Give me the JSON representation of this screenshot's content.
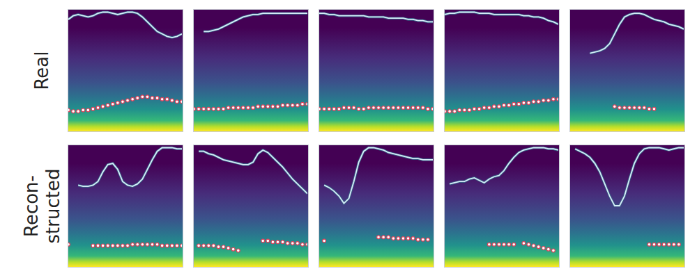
{
  "chart_data": [
    {
      "type": "line",
      "ylabel": "Real",
      "x": [
        0,
        1,
        2,
        3,
        4,
        5,
        6,
        7,
        8,
        9,
        10,
        11,
        12,
        13,
        14,
        15,
        16,
        17,
        18,
        19,
        20,
        21,
        22,
        23
      ],
      "xlim": [
        0,
        23
      ],
      "ylim": [
        0,
        1
      ],
      "tick_labels": false,
      "series": [
        {
          "type": "line",
          "color": "#d6ecf8",
          "values": [
            0.92,
            0.95,
            0.96,
            0.95,
            0.94,
            0.95,
            0.97,
            0.98,
            0.98,
            0.97,
            0.96,
            0.97,
            0.98,
            0.98,
            0.97,
            0.94,
            0.9,
            0.86,
            0.82,
            0.8,
            0.78,
            0.77,
            0.78,
            0.8
          ]
        },
        {
          "type": "scatter",
          "color": "#ffffff",
          "marker": "circle",
          "values": [
            0.17,
            0.16,
            0.16,
            0.17,
            0.17,
            0.18,
            0.19,
            0.2,
            0.21,
            0.22,
            0.23,
            0.24,
            0.25,
            0.26,
            0.27,
            0.28,
            0.28,
            0.27,
            0.27,
            0.26,
            0.26,
            0.25,
            0.24,
            0.24
          ]
        }
      ]
    },
    {
      "type": "line",
      "x": [
        0,
        1,
        2,
        3,
        4,
        5,
        6,
        7,
        8,
        9,
        10,
        11,
        12,
        13,
        14,
        15,
        16,
        17,
        18,
        19,
        20,
        21,
        22,
        23
      ],
      "xlim": [
        0,
        23
      ],
      "ylim": [
        0,
        1
      ],
      "tick_labels": false,
      "series": [
        {
          "type": "line",
          "color": "#d6ecf8",
          "values": [
            null,
            null,
            0.82,
            0.82,
            0.83,
            0.84,
            0.86,
            0.88,
            0.9,
            0.92,
            0.94,
            0.95,
            0.96,
            0.96,
            0.97,
            0.97,
            0.97,
            0.97,
            0.97,
            0.97,
            0.97,
            0.97,
            0.97,
            0.97
          ]
        },
        {
          "type": "scatter",
          "color": "#ffffff",
          "marker": "circle",
          "values": [
            0.18,
            0.18,
            0.18,
            0.18,
            0.18,
            0.18,
            0.18,
            0.19,
            0.19,
            0.19,
            0.19,
            0.19,
            0.19,
            0.2,
            0.2,
            0.2,
            0.2,
            0.2,
            0.21,
            0.21,
            0.21,
            0.21,
            0.22,
            0.22
          ]
        }
      ]
    },
    {
      "type": "line",
      "x": [
        0,
        1,
        2,
        3,
        4,
        5,
        6,
        7,
        8,
        9,
        10,
        11,
        12,
        13,
        14,
        15,
        16,
        17,
        18,
        19,
        20,
        21,
        22,
        23
      ],
      "xlim": [
        0,
        23
      ],
      "ylim": [
        0,
        1
      ],
      "tick_labels": false,
      "series": [
        {
          "type": "line",
          "color": "#d6ecf8",
          "values": [
            0.97,
            0.97,
            0.96,
            0.96,
            0.95,
            0.95,
            0.95,
            0.95,
            0.95,
            0.95,
            0.94,
            0.94,
            0.94,
            0.94,
            0.93,
            0.93,
            0.93,
            0.93,
            0.92,
            0.92,
            0.91,
            0.91,
            0.9,
            0.9
          ]
        },
        {
          "type": "scatter",
          "color": "#ffffff",
          "marker": "circle",
          "values": [
            0.18,
            0.18,
            0.18,
            0.18,
            0.18,
            0.19,
            0.19,
            0.19,
            0.18,
            0.18,
            0.19,
            0.19,
            0.19,
            0.19,
            0.19,
            0.19,
            0.19,
            0.19,
            0.19,
            0.19,
            0.19,
            0.19,
            0.18,
            0.18
          ]
        }
      ]
    },
    {
      "type": "line",
      "x": [
        0,
        1,
        2,
        3,
        4,
        5,
        6,
        7,
        8,
        9,
        10,
        11,
        12,
        13,
        14,
        15,
        16,
        17,
        18,
        19,
        20,
        21,
        22,
        23
      ],
      "xlim": [
        0,
        23
      ],
      "ylim": [
        0,
        1
      ],
      "tick_labels": false,
      "series": [
        {
          "type": "line",
          "color": "#d6ecf8",
          "values": [
            0.96,
            0.97,
            0.97,
            0.98,
            0.98,
            0.98,
            0.98,
            0.97,
            0.97,
            0.97,
            0.96,
            0.96,
            0.96,
            0.96,
            0.96,
            0.96,
            0.95,
            0.95,
            0.94,
            0.94,
            0.93,
            0.91,
            0.9,
            0.88
          ]
        },
        {
          "type": "scatter",
          "color": "#ffffff",
          "marker": "circle",
          "values": [
            0.16,
            0.16,
            0.16,
            0.17,
            0.17,
            0.17,
            0.18,
            0.18,
            0.19,
            0.19,
            0.2,
            0.2,
            0.21,
            0.21,
            0.22,
            0.22,
            0.23,
            0.23,
            0.24,
            0.24,
            0.25,
            0.25,
            0.26,
            0.26
          ]
        }
      ]
    },
    {
      "type": "line",
      "x": [
        0,
        1,
        2,
        3,
        4,
        5,
        6,
        7,
        8,
        9,
        10,
        11,
        12,
        13,
        14,
        15,
        16,
        17,
        18,
        19,
        20,
        21,
        22,
        23
      ],
      "xlim": [
        0,
        23
      ],
      "ylim": [
        0,
        1
      ],
      "tick_labels": false,
      "series": [
        {
          "type": "line",
          "color": "#d6ecf8",
          "values": [
            null,
            null,
            null,
            null,
            0.64,
            0.65,
            0.66,
            0.68,
            0.72,
            0.8,
            0.88,
            0.94,
            0.96,
            0.97,
            0.97,
            0.96,
            0.94,
            0.92,
            0.91,
            0.9,
            0.88,
            0.87,
            0.86,
            0.84
          ]
        },
        {
          "type": "scatter",
          "color": "#ffffff",
          "marker": "circle",
          "values": [
            null,
            null,
            null,
            null,
            null,
            null,
            null,
            null,
            null,
            0.2,
            0.19,
            0.19,
            0.19,
            0.19,
            0.19,
            0.19,
            0.18,
            0.18,
            null,
            null,
            null,
            null,
            null,
            null
          ]
        }
      ]
    },
    {
      "type": "line",
      "ylabel": "Recon-\nstructed",
      "x": [
        0,
        1,
        2,
        3,
        4,
        5,
        6,
        7,
        8,
        9,
        10,
        11,
        12,
        13,
        14,
        15,
        16,
        17,
        18,
        19,
        20,
        21,
        22,
        23
      ],
      "xlim": [
        0,
        23
      ],
      "ylim": [
        0,
        1
      ],
      "tick_labels": false,
      "series": [
        {
          "type": "line",
          "color": "#d6ecf8",
          "values": [
            null,
            null,
            0.67,
            0.66,
            0.66,
            0.67,
            0.7,
            0.78,
            0.84,
            0.85,
            0.8,
            0.7,
            0.67,
            0.66,
            0.68,
            0.72,
            0.8,
            0.88,
            0.95,
            0.98,
            0.98,
            0.98,
            0.97,
            0.97
          ]
        },
        {
          "type": "scatter",
          "color": "#ffffff",
          "marker": "circle",
          "values": [
            0.18,
            null,
            null,
            null,
            null,
            0.17,
            0.17,
            0.17,
            0.17,
            0.17,
            0.17,
            0.17,
            0.17,
            0.18,
            0.18,
            0.18,
            0.18,
            0.18,
            0.18,
            0.17,
            0.17,
            0.17,
            0.17,
            0.17
          ]
        }
      ]
    },
    {
      "type": "line",
      "x": [
        0,
        1,
        2,
        3,
        4,
        5,
        6,
        7,
        8,
        9,
        10,
        11,
        12,
        13,
        14,
        15,
        16,
        17,
        18,
        19,
        20,
        21,
        22,
        23
      ],
      "xlim": [
        0,
        23
      ],
      "ylim": [
        0,
        1
      ],
      "tick_labels": false,
      "series": [
        {
          "type": "line",
          "color": "#d6ecf8",
          "values": [
            null,
            0.95,
            0.95,
            0.93,
            0.92,
            0.9,
            0.88,
            0.87,
            0.86,
            0.85,
            0.84,
            0.84,
            0.86,
            0.93,
            0.96,
            0.94,
            0.9,
            0.86,
            0.82,
            0.77,
            0.72,
            0.68,
            0.64,
            0.6
          ]
        },
        {
          "type": "scatter",
          "color": "#ffffff",
          "marker": "circle",
          "values": [
            null,
            0.17,
            0.17,
            0.17,
            0.17,
            0.16,
            0.16,
            0.15,
            0.14,
            0.13,
            null,
            null,
            null,
            null,
            0.21,
            0.21,
            0.2,
            0.2,
            0.2,
            0.19,
            0.19,
            0.19,
            0.18,
            0.18
          ]
        }
      ]
    },
    {
      "type": "line",
      "x": [
        0,
        1,
        2,
        3,
        4,
        5,
        6,
        7,
        8,
        9,
        10,
        11,
        12,
        13,
        14,
        15,
        16,
        17,
        18,
        19,
        20,
        21,
        22,
        23
      ],
      "xlim": [
        0,
        23
      ],
      "ylim": [
        0,
        1
      ],
      "tick_labels": false,
      "series": [
        {
          "type": "line",
          "color": "#d6ecf8",
          "values": [
            null,
            0.67,
            0.65,
            0.62,
            0.58,
            0.52,
            0.56,
            0.7,
            0.86,
            0.95,
            0.98,
            0.98,
            0.97,
            0.96,
            0.94,
            0.93,
            0.92,
            0.91,
            0.9,
            0.89,
            0.89,
            0.88,
            0.88,
            0.88
          ]
        },
        {
          "type": "scatter",
          "color": "#ffffff",
          "marker": "circle",
          "values": [
            null,
            0.21,
            null,
            null,
            null,
            null,
            null,
            null,
            null,
            null,
            null,
            null,
            0.24,
            0.24,
            0.24,
            0.23,
            0.23,
            0.23,
            0.23,
            0.23,
            0.22,
            0.22,
            0.22,
            null
          ]
        }
      ]
    },
    {
      "type": "line",
      "x": [
        0,
        1,
        2,
        3,
        4,
        5,
        6,
        7,
        8,
        9,
        10,
        11,
        12,
        13,
        14,
        15,
        16,
        17,
        18,
        19,
        20,
        21,
        22,
        23
      ],
      "xlim": [
        0,
        23
      ],
      "ylim": [
        0,
        1
      ],
      "tick_labels": false,
      "series": [
        {
          "type": "line",
          "color": "#d6ecf8",
          "values": [
            null,
            0.68,
            0.69,
            0.7,
            0.7,
            0.72,
            0.73,
            0.71,
            0.69,
            0.72,
            0.74,
            0.75,
            0.79,
            0.85,
            0.9,
            0.94,
            0.96,
            0.97,
            0.98,
            0.98,
            0.98,
            0.97,
            0.97,
            0.96
          ]
        },
        {
          "type": "scatter",
          "color": "#ffffff",
          "marker": "circle",
          "values": [
            null,
            null,
            null,
            null,
            null,
            null,
            null,
            null,
            null,
            0.18,
            0.18,
            0.18,
            0.18,
            0.18,
            0.18,
            null,
            0.19,
            0.18,
            0.17,
            0.16,
            0.15,
            0.14,
            0.13,
            null
          ]
        }
      ]
    },
    {
      "type": "line",
      "x": [
        0,
        1,
        2,
        3,
        4,
        5,
        6,
        7,
        8,
        9,
        10,
        11,
        12,
        13,
        14,
        15,
        16,
        17,
        18,
        19,
        20,
        21,
        22,
        23
      ],
      "xlim": [
        0,
        23
      ],
      "ylim": [
        0,
        1
      ],
      "tick_labels": false,
      "series": [
        {
          "type": "line",
          "color": "#d6ecf8",
          "values": [
            null,
            0.97,
            0.95,
            0.93,
            0.9,
            0.85,
            0.78,
            0.68,
            0.58,
            0.5,
            0.5,
            0.58,
            0.72,
            0.85,
            0.93,
            0.97,
            0.98,
            0.98,
            0.98,
            0.97,
            0.96,
            0.97,
            0.98,
            0.98
          ]
        },
        {
          "type": "scatter",
          "color": "#ffffff",
          "marker": "circle",
          "values": [
            null,
            null,
            null,
            null,
            null,
            null,
            null,
            null,
            null,
            null,
            null,
            null,
            null,
            null,
            null,
            null,
            0.18,
            0.18,
            0.18,
            0.18,
            0.18,
            0.18,
            0.18,
            null
          ]
        }
      ]
    }
  ]
}
